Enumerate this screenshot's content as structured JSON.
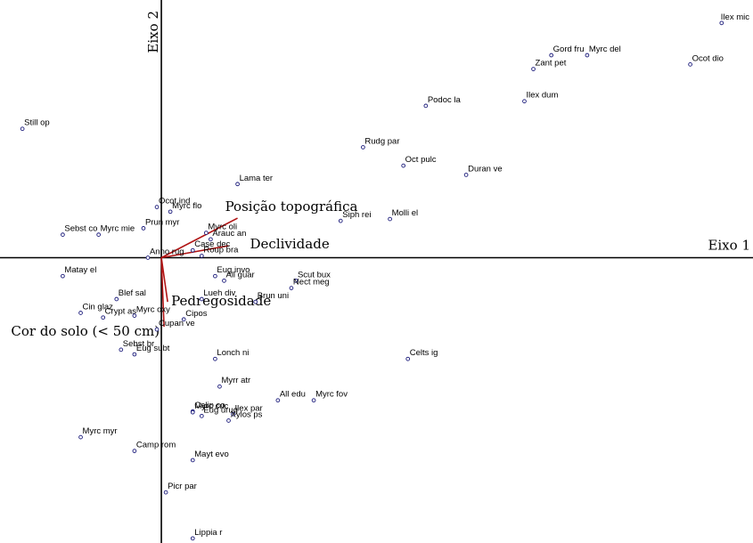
{
  "chart_data": {
    "type": "scatter",
    "title": "",
    "xlabel": "Eixo 1",
    "ylabel": "Eixo 2",
    "xlim": [
      -1.8,
      6.6
    ],
    "ylim": [
      -3.1,
      2.8
    ],
    "grid": false,
    "colors": {
      "points": "#1a1a7a",
      "vectors": "#b01414",
      "axes": "#000000"
    },
    "points": [
      {
        "label": "Ilex mic",
        "x": 6.25,
        "y": 2.55
      },
      {
        "label": "Ocot dio",
        "x": 5.9,
        "y": 2.1
      },
      {
        "label": "Gord fru",
        "x": 4.35,
        "y": 2.2
      },
      {
        "label": "Myrc del",
        "x": 4.75,
        "y": 2.2
      },
      {
        "label": "Zant pet",
        "x": 4.15,
        "y": 2.05
      },
      {
        "label": "Ilex dum",
        "x": 4.05,
        "y": 1.7
      },
      {
        "label": "Podoc la",
        "x": 2.95,
        "y": 1.65
      },
      {
        "label": "Still op",
        "x": -1.55,
        "y": 1.4
      },
      {
        "label": "Rudg par",
        "x": 2.25,
        "y": 1.2
      },
      {
        "label": "Oct pulc",
        "x": 2.7,
        "y": 1.0
      },
      {
        "label": "Duran ve",
        "x": 3.4,
        "y": 0.9
      },
      {
        "label": "Lama ter",
        "x": 0.85,
        "y": 0.8
      },
      {
        "label": "Ocot ind",
        "x": -0.05,
        "y": 0.55
      },
      {
        "label": "Myrc flo",
        "x": 0.1,
        "y": 0.5
      },
      {
        "label": "Siph rei",
        "x": 2.0,
        "y": 0.4
      },
      {
        "label": "Molli el",
        "x": 2.55,
        "y": 0.42
      },
      {
        "label": "Prun myr",
        "x": -0.2,
        "y": 0.32
      },
      {
        "label": "Sebst co",
        "x": -1.1,
        "y": 0.25
      },
      {
        "label": "Myrc mie",
        "x": -0.7,
        "y": 0.25
      },
      {
        "label": "Myrc oli",
        "x": 0.5,
        "y": 0.27
      },
      {
        "label": "Arauc an",
        "x": 0.55,
        "y": 0.2
      },
      {
        "label": "Case dec",
        "x": 0.35,
        "y": 0.08
      },
      {
        "label": "Roup bra",
        "x": 0.45,
        "y": 0.02
      },
      {
        "label": "Anno rug",
        "x": -0.15,
        "y": 0.0
      },
      {
        "label": "Matay el",
        "x": -1.1,
        "y": -0.2
      },
      {
        "label": "Eug invo",
        "x": 0.6,
        "y": -0.2
      },
      {
        "label": "All guar",
        "x": 0.7,
        "y": -0.25
      },
      {
        "label": "Scut bux",
        "x": 1.5,
        "y": -0.25
      },
      {
        "label": "Nect meg",
        "x": 1.45,
        "y": -0.33
      },
      {
        "label": "Lueh div",
        "x": 0.45,
        "y": -0.45
      },
      {
        "label": "Brun uni",
        "x": 1.05,
        "y": -0.48
      },
      {
        "label": "Blef sal",
        "x": -0.5,
        "y": -0.45
      },
      {
        "label": "Cin glaz",
        "x": -0.9,
        "y": -0.6
      },
      {
        "label": "Crypt as",
        "x": -0.65,
        "y": -0.65
      },
      {
        "label": "Myrc oxy",
        "x": -0.3,
        "y": -0.63
      },
      {
        "label": "Cipos",
        "x": 0.25,
        "y": -0.67
      },
      {
        "label": "Cupan ve",
        "x": -0.05,
        "y": -0.78
      },
      {
        "label": "Sebst br",
        "x": -0.45,
        "y": -1.0
      },
      {
        "label": "Eug subt",
        "x": -0.3,
        "y": -1.05
      },
      {
        "label": "Lonch ni",
        "x": 0.6,
        "y": -1.1
      },
      {
        "label": "Celts ig",
        "x": 2.75,
        "y": -1.1
      },
      {
        "label": "Myrr atr",
        "x": 0.65,
        "y": -1.4
      },
      {
        "label": "All edu",
        "x": 1.3,
        "y": -1.55
      },
      {
        "label": "Myrc fov",
        "x": 1.7,
        "y": -1.55
      },
      {
        "label": "Calip co",
        "x": 0.35,
        "y": -1.67
      },
      {
        "label": "Myrc cuc",
        "x": 0.35,
        "y": -1.68
      },
      {
        "label": "Eug urug",
        "x": 0.45,
        "y": -1.72
      },
      {
        "label": "Ilex par",
        "x": 0.8,
        "y": -1.7
      },
      {
        "label": "Xylos ps",
        "x": 0.75,
        "y": -1.77
      },
      {
        "label": "Myrc myr",
        "x": -0.9,
        "y": -1.95
      },
      {
        "label": "Camp rom",
        "x": -0.3,
        "y": -2.1
      },
      {
        "label": "Mayt evo",
        "x": 0.35,
        "y": -2.2
      },
      {
        "label": "Picr par",
        "x": 0.05,
        "y": -2.55
      },
      {
        "label": "Lippia r",
        "x": 0.35,
        "y": -3.05
      }
    ],
    "vectors": [
      {
        "label": "Posição topográfica",
        "x": 0.85,
        "y": 0.43
      },
      {
        "label": "Declividade",
        "x": 0.75,
        "y": 0.13
      },
      {
        "label": "Pedregosidade",
        "x": 0.07,
        "y": -0.48
      },
      {
        "label": "Cor do solo (< 50 cm)",
        "x": 0.03,
        "y": -0.75
      }
    ]
  }
}
